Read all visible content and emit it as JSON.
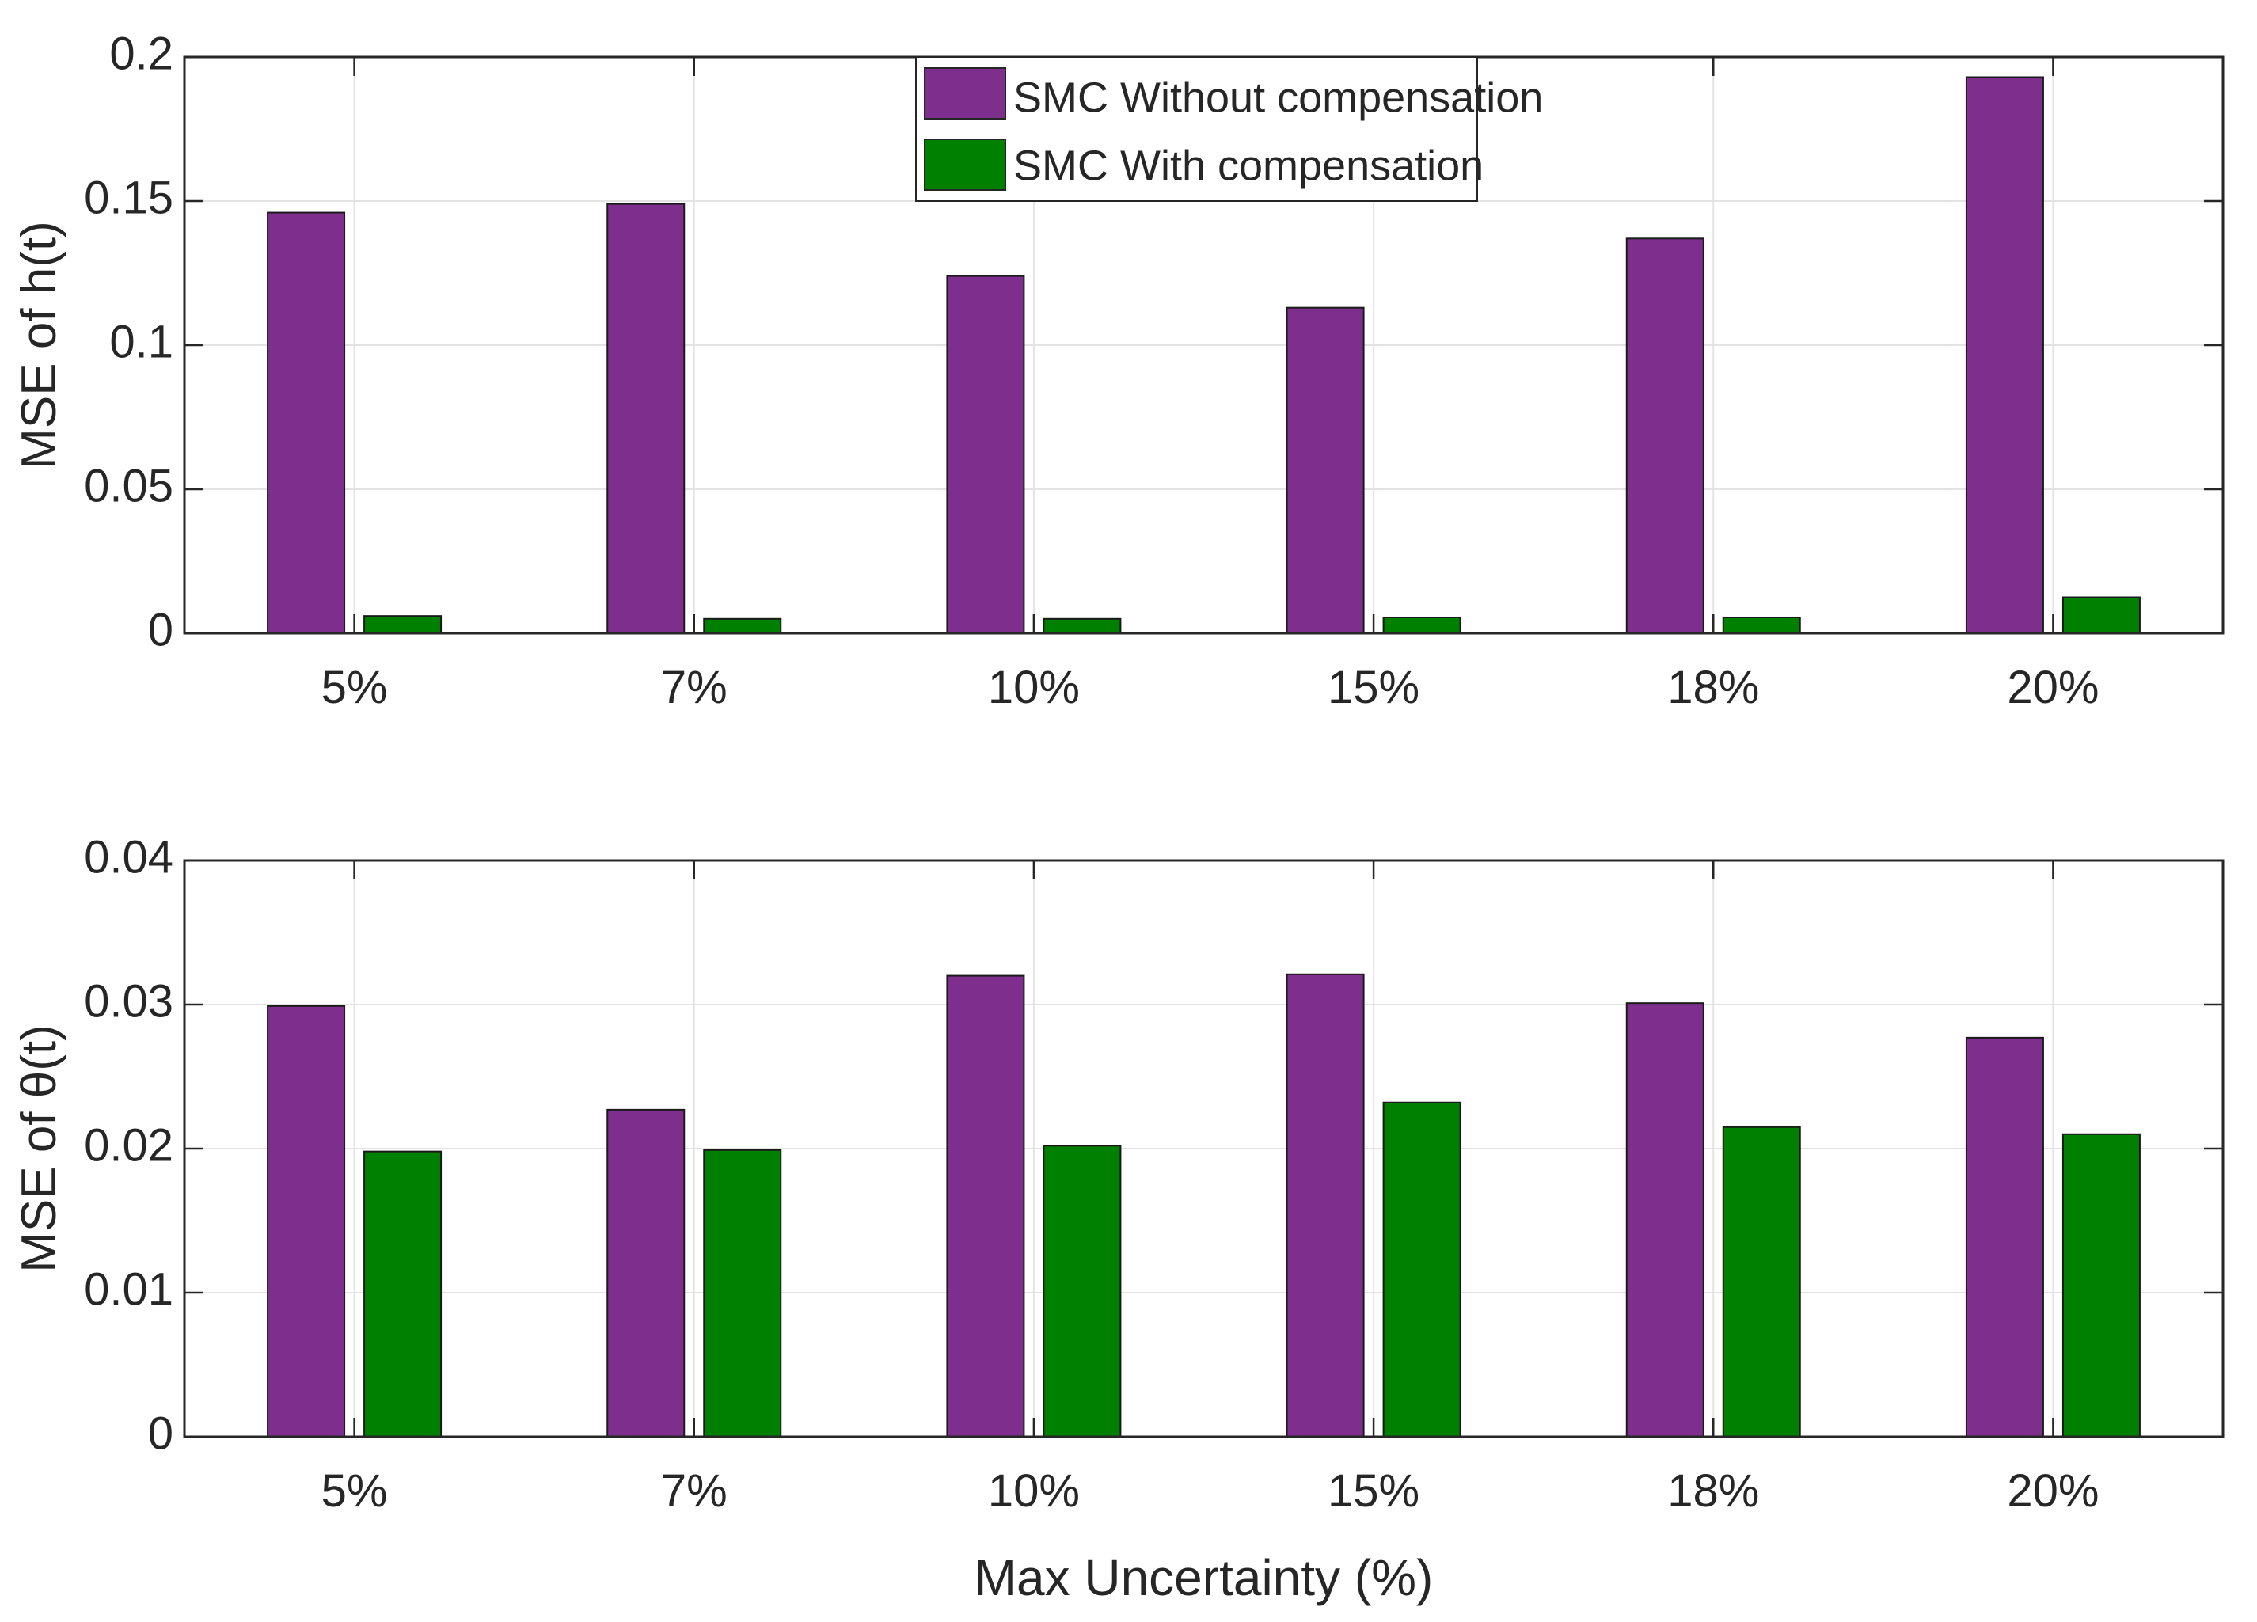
{
  "legend": [
    {
      "label": "SMC Without compensation",
      "color": "#7E2F8E"
    },
    {
      "label": "SMC With compensation",
      "color": "#008000"
    }
  ],
  "chart_data": [
    {
      "type": "bar",
      "categories": [
        "5%",
        "7%",
        "10%",
        "15%",
        "18%",
        "20%"
      ],
      "series": [
        {
          "name": "SMC Without compensation",
          "color": "#7E2F8E",
          "values": [
            0.146,
            0.149,
            0.124,
            0.113,
            0.137,
            0.193
          ]
        },
        {
          "name": "SMC With compensation",
          "color": "#008000",
          "values": [
            0.006,
            0.005,
            0.005,
            0.0055,
            0.0055,
            0.0125
          ]
        }
      ],
      "ylabel": "MSE of h(t)",
      "xlabel": "",
      "ylim": [
        0,
        0.2
      ],
      "yticks": [
        "0",
        "0.05",
        "0.1",
        "0.15",
        "0.2"
      ],
      "grid": true,
      "legend_position": "top-center"
    },
    {
      "type": "bar",
      "categories": [
        "5%",
        "7%",
        "10%",
        "15%",
        "18%",
        "20%"
      ],
      "series": [
        {
          "name": "SMC Without compensation",
          "color": "#7E2F8E",
          "values": [
            0.0299,
            0.0227,
            0.032,
            0.0321,
            0.0301,
            0.0277
          ]
        },
        {
          "name": "SMC With compensation",
          "color": "#008000",
          "values": [
            0.0198,
            0.0199,
            0.0202,
            0.0232,
            0.0215,
            0.021
          ]
        }
      ],
      "ylabel": "MSE of θ(t)",
      "xlabel": "Max Uncertainty (%)",
      "ylim": [
        0,
        0.04
      ],
      "yticks": [
        "0",
        "0.01",
        "0.02",
        "0.03",
        "0.04"
      ],
      "grid": true
    }
  ]
}
